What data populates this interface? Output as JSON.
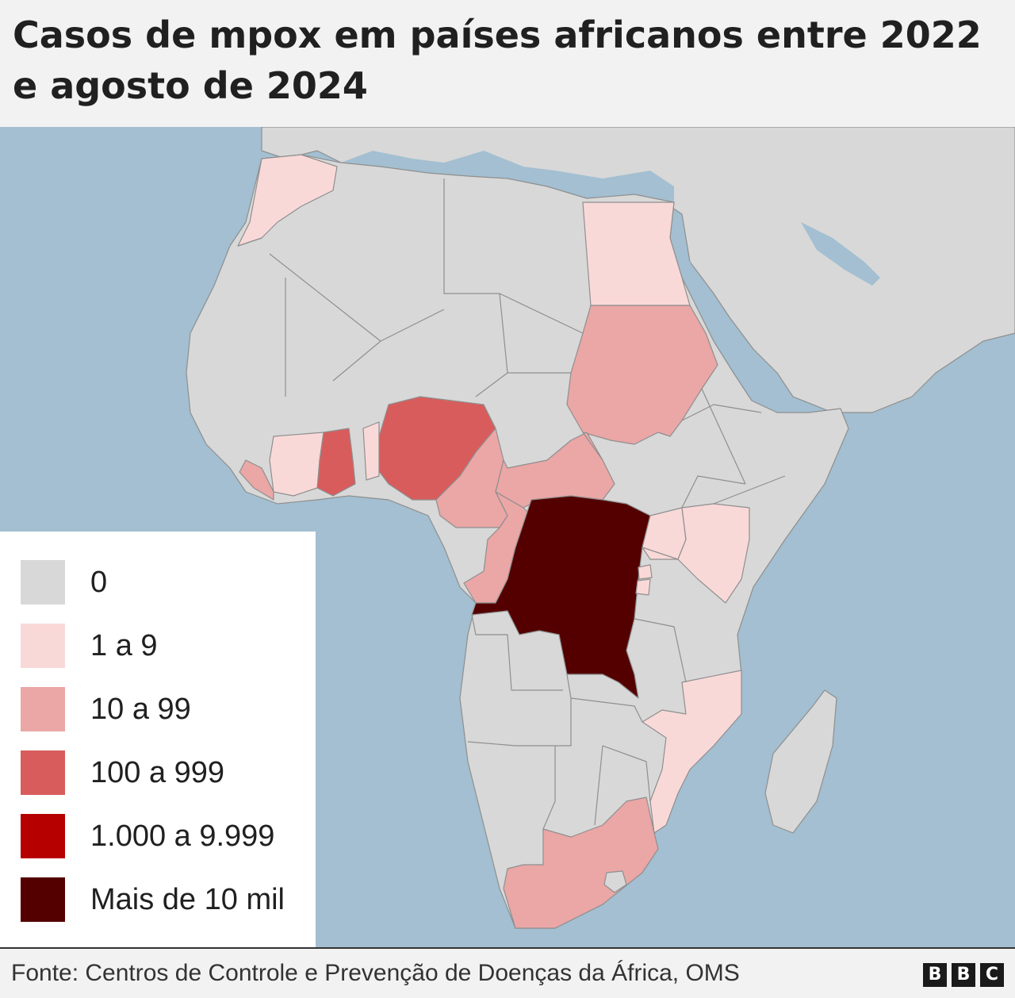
{
  "title": "Casos de mpox em países africanos entre 2022 e agosto de 2024",
  "legend": [
    {
      "label": "0",
      "color": "#d8d8d8"
    },
    {
      "label": "1 a 9",
      "color": "#f9d9d8"
    },
    {
      "label": "10 a 99",
      "color": "#eba6a6"
    },
    {
      "label": "100 a 999",
      "color": "#d85c5c"
    },
    {
      "label": "1.000 a 9.999",
      "color": "#b60000"
    },
    {
      "label": "Mais de 10 mil",
      "color": "#540000"
    }
  ],
  "colors": {
    "sea": "#a3bfd1",
    "land": "#d8d8d8",
    "border": "#8f8f8f"
  },
  "countries": [
    {
      "id": "morocco",
      "category": 1
    },
    {
      "id": "egypt",
      "category": 1
    },
    {
      "id": "sudan",
      "category": 2
    },
    {
      "id": "nigeria",
      "category": 3
    },
    {
      "id": "ghana",
      "category": 3
    },
    {
      "id": "benin",
      "category": 1
    },
    {
      "id": "cote-divoire",
      "category": 1
    },
    {
      "id": "liberia",
      "category": 2
    },
    {
      "id": "guinea",
      "category": 0
    },
    {
      "id": "cameroon",
      "category": 2
    },
    {
      "id": "central-african-republic",
      "category": 2
    },
    {
      "id": "congo",
      "category": 2
    },
    {
      "id": "gabon",
      "category": 0
    },
    {
      "id": "dr-congo",
      "category": 5
    },
    {
      "id": "uganda",
      "category": 1
    },
    {
      "id": "kenya",
      "category": 1
    },
    {
      "id": "rwanda",
      "category": 1
    },
    {
      "id": "burundi",
      "category": 1
    },
    {
      "id": "mozambique",
      "category": 1
    },
    {
      "id": "south-africa",
      "category": 2
    },
    {
      "id": "angola",
      "category": 0
    },
    {
      "id": "zambia",
      "category": 0
    },
    {
      "id": "tanzania",
      "category": 0
    }
  ],
  "footer": {
    "source": "Fonte: Centros de Controle e Prevenção de Doenças da África, OMS",
    "brand": [
      "B",
      "B",
      "C"
    ]
  }
}
